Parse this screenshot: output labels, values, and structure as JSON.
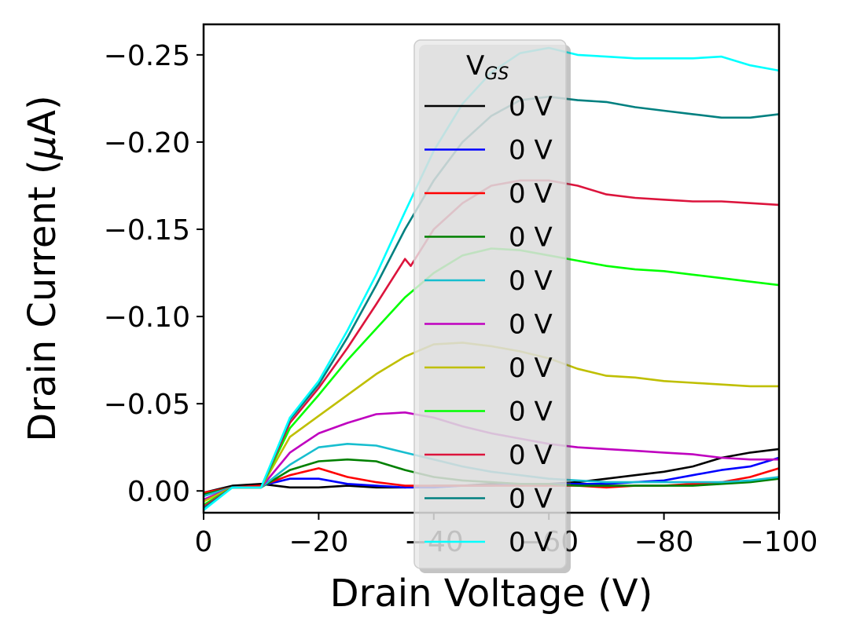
{
  "chart_data": {
    "type": "line",
    "xlabel": "Drain Voltage (V)",
    "ylabel_main": "Drain Current (",
    "ylabel_mu": "μ",
    "ylabel_tail": "A)",
    "xlim": [
      0,
      -100
    ],
    "ylim": [
      0.0125,
      -0.2675
    ],
    "x_ticks": [
      0,
      -20,
      -40,
      -60,
      -80,
      -100
    ],
    "x_tick_labels": [
      "0",
      "−20",
      "−40",
      "−60",
      "−80",
      "−100"
    ],
    "y_ticks": [
      -0.25,
      -0.2,
      -0.15,
      -0.1,
      -0.05,
      0.0
    ],
    "y_tick_labels": [
      "−0.25",
      "−0.20",
      "−0.15",
      "−0.10",
      "−0.05",
      "0.00"
    ],
    "grid": false,
    "legend": {
      "placement": "upper-center",
      "title_main": "V",
      "title_sub": "GS"
    },
    "series": [
      {
        "name": "0 V",
        "color": "#000000",
        "x": [
          0,
          -5,
          -10,
          -15,
          -20,
          -25,
          -30,
          -35,
          -40,
          -45,
          -50,
          -55,
          -60,
          -65,
          -70,
          -75,
          -80,
          -85,
          -90,
          -95,
          -100
        ],
        "y": [
          0.001,
          -0.003,
          -0.004,
          -0.002,
          -0.002,
          -0.003,
          -0.002,
          -0.002,
          -0.003,
          -0.003,
          -0.004,
          -0.003,
          -0.004,
          -0.005,
          -0.007,
          -0.009,
          -0.011,
          -0.014,
          -0.019,
          -0.022,
          -0.024
        ]
      },
      {
        "name": "0 V",
        "color": "#0000ff",
        "x": [
          0,
          -5,
          -10,
          -15,
          -20,
          -25,
          -30,
          -35,
          -40,
          -45,
          -50,
          -55,
          -60,
          -65,
          -70,
          -75,
          -80,
          -85,
          -90,
          -95,
          -100
        ],
        "y": [
          0.001,
          -0.002,
          -0.003,
          -0.007,
          -0.007,
          -0.004,
          -0.003,
          -0.002,
          -0.002,
          -0.003,
          -0.003,
          -0.004,
          -0.004,
          -0.004,
          -0.004,
          -0.005,
          -0.006,
          -0.009,
          -0.012,
          -0.014,
          -0.019
        ]
      },
      {
        "name": "0 V",
        "color": "#ff0000",
        "x": [
          0,
          -5,
          -10,
          -15,
          -20,
          -25,
          -30,
          -35,
          -40,
          -45,
          -50,
          -55,
          -60,
          -65,
          -70,
          -75,
          -80,
          -85,
          -90,
          -95,
          -100
        ],
        "y": [
          0.001,
          -0.002,
          -0.003,
          -0.009,
          -0.013,
          -0.008,
          -0.005,
          -0.003,
          -0.003,
          -0.003,
          -0.003,
          -0.003,
          -0.003,
          -0.003,
          -0.002,
          -0.003,
          -0.003,
          -0.004,
          -0.005,
          -0.008,
          -0.013
        ]
      },
      {
        "name": "0 V",
        "color": "#008000",
        "x": [
          0,
          -5,
          -10,
          -15,
          -20,
          -25,
          -30,
          -35,
          -40,
          -45,
          -50,
          -55,
          -60,
          -65,
          -70,
          -75,
          -80,
          -85,
          -90,
          -95,
          -100
        ],
        "y": [
          0.002,
          -0.002,
          -0.002,
          -0.012,
          -0.017,
          -0.018,
          -0.017,
          -0.012,
          -0.008,
          -0.006,
          -0.005,
          -0.004,
          -0.004,
          -0.003,
          -0.003,
          -0.003,
          -0.003,
          -0.003,
          -0.004,
          -0.005,
          -0.007
        ]
      },
      {
        "name": "0 V",
        "color": "#17becf",
        "x": [
          0,
          -5,
          -10,
          -15,
          -20,
          -25,
          -30,
          -35,
          -40,
          -45,
          -50,
          -55,
          -60,
          -65,
          -70,
          -75,
          -80,
          -85,
          -90,
          -95,
          -100
        ],
        "y": [
          0.003,
          -0.002,
          -0.002,
          -0.015,
          -0.025,
          -0.027,
          -0.026,
          -0.022,
          -0.018,
          -0.014,
          -0.011,
          -0.009,
          -0.007,
          -0.006,
          -0.005,
          -0.005,
          -0.005,
          -0.005,
          -0.005,
          -0.006,
          -0.008
        ]
      },
      {
        "name": "0 V",
        "color": "#bf00bf",
        "x": [
          0,
          -5,
          -10,
          -15,
          -20,
          -25,
          -30,
          -35,
          -40,
          -45,
          -50,
          -55,
          -60,
          -65,
          -70,
          -75,
          -80,
          -85,
          -90,
          -95,
          -100
        ],
        "y": [
          0.005,
          -0.002,
          -0.002,
          -0.022,
          -0.033,
          -0.039,
          -0.044,
          -0.045,
          -0.042,
          -0.037,
          -0.033,
          -0.03,
          -0.027,
          -0.025,
          -0.024,
          -0.023,
          -0.022,
          -0.021,
          -0.019,
          -0.018,
          -0.018
        ]
      },
      {
        "name": "0 V",
        "color": "#bfbf00",
        "x": [
          0,
          -5,
          -10,
          -15,
          -20,
          -25,
          -30,
          -35,
          -40,
          -45,
          -50,
          -55,
          -60,
          -65,
          -70,
          -75,
          -80,
          -85,
          -90,
          -95,
          -100
        ],
        "y": [
          0.006,
          -0.002,
          -0.002,
          -0.031,
          -0.043,
          -0.055,
          -0.067,
          -0.077,
          -0.084,
          -0.085,
          -0.083,
          -0.08,
          -0.076,
          -0.07,
          -0.066,
          -0.065,
          -0.063,
          -0.062,
          -0.061,
          -0.06,
          -0.06
        ]
      },
      {
        "name": "0 V",
        "color": "#00ff00",
        "x": [
          0,
          -5,
          -10,
          -15,
          -20,
          -25,
          -30,
          -35,
          -40,
          -45,
          -50,
          -55,
          -60,
          -65,
          -70,
          -75,
          -80,
          -85,
          -90,
          -95,
          -100
        ],
        "y": [
          0.008,
          -0.002,
          -0.002,
          -0.036,
          -0.055,
          -0.075,
          -0.093,
          -0.111,
          -0.125,
          -0.135,
          -0.139,
          -0.138,
          -0.135,
          -0.132,
          -0.129,
          -0.127,
          -0.126,
          -0.124,
          -0.122,
          -0.12,
          -0.118
        ]
      },
      {
        "name": "0 V",
        "color": "#dc143c",
        "x": [
          0,
          -5,
          -10,
          -15,
          -20,
          -25,
          -30,
          -35,
          -36,
          -40,
          -45,
          -50,
          -55,
          -60,
          -65,
          -70,
          -75,
          -80,
          -85,
          -90,
          -95,
          -100
        ],
        "y": [
          0.009,
          -0.002,
          -0.002,
          -0.039,
          -0.059,
          -0.082,
          -0.107,
          -0.133,
          -0.129,
          -0.15,
          -0.165,
          -0.175,
          -0.178,
          -0.178,
          -0.175,
          -0.17,
          -0.168,
          -0.167,
          -0.166,
          -0.166,
          -0.165,
          -0.164
        ]
      },
      {
        "name": "0 V",
        "color": "#008080",
        "x": [
          0,
          -5,
          -10,
          -15,
          -20,
          -25,
          -30,
          -35,
          -40,
          -45,
          -50,
          -55,
          -60,
          -65,
          -70,
          -75,
          -80,
          -85,
          -90,
          -95,
          -100
        ],
        "y": [
          0.01,
          -0.002,
          -0.002,
          -0.041,
          -0.061,
          -0.088,
          -0.118,
          -0.15,
          -0.178,
          -0.2,
          -0.215,
          -0.224,
          -0.226,
          -0.224,
          -0.223,
          -0.22,
          -0.218,
          -0.216,
          -0.214,
          -0.214,
          -0.216
        ]
      },
      {
        "name": "0 V",
        "color": "#00ffff",
        "x": [
          0,
          -5,
          -10,
          -15,
          -20,
          -25,
          -30,
          -35,
          -40,
          -45,
          -50,
          -55,
          -60,
          -65,
          -70,
          -75,
          -80,
          -85,
          -90,
          -95,
          -100
        ],
        "y": [
          0.011,
          -0.002,
          -0.002,
          -0.042,
          -0.063,
          -0.092,
          -0.124,
          -0.16,
          -0.195,
          -0.222,
          -0.24,
          -0.251,
          -0.254,
          -0.25,
          -0.249,
          -0.248,
          -0.248,
          -0.248,
          -0.249,
          -0.244,
          -0.241
        ]
      }
    ]
  }
}
